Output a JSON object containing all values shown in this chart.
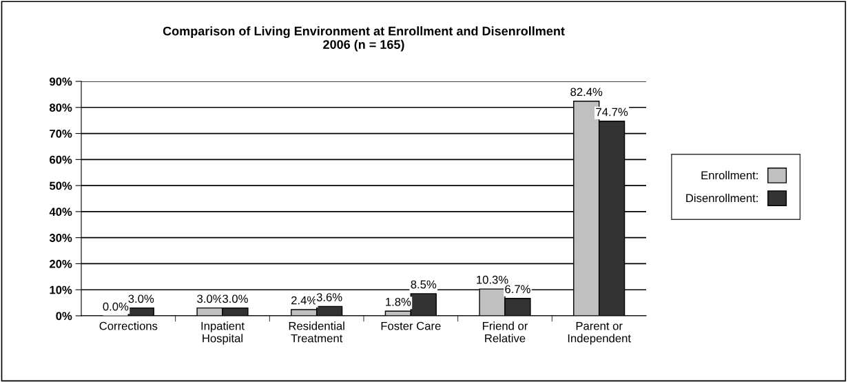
{
  "chart_data": {
    "type": "bar",
    "title": "Comparison of Living Environment at Enrollment and Disenrollment\n2006 (n = 165)",
    "categories": [
      "Corrections",
      "Inpatient\nHospital",
      "Residential\nTreatment",
      "Foster Care",
      "Friend or\nRelative",
      "Parent or\nIndependent"
    ],
    "series": [
      {
        "name": "Enrollment:",
        "color": "#c0c0c0",
        "values": [
          0.0,
          3.0,
          2.4,
          1.8,
          10.3,
          82.4
        ],
        "value_labels": [
          "0.0%",
          "3.0%",
          "2.4%",
          "1.8%",
          "10.3%",
          "82.4%"
        ]
      },
      {
        "name": "Disenrollment:",
        "color": "#333333",
        "values": [
          3.0,
          3.0,
          3.6,
          8.5,
          6.7,
          74.7
        ],
        "value_labels": [
          "3.0%",
          "3.0%",
          "3.6%",
          "8.5%",
          "6.7%",
          "74.7%"
        ]
      }
    ],
    "ylim": [
      0,
      90
    ],
    "yticks": [
      {
        "value": 0,
        "label": "0%"
      },
      {
        "value": 10,
        "label": "10%"
      },
      {
        "value": 20,
        "label": "20%"
      },
      {
        "value": 30,
        "label": "30%"
      },
      {
        "value": 40,
        "label": "40%"
      },
      {
        "value": 50,
        "label": "50%"
      },
      {
        "value": 60,
        "label": "60%"
      },
      {
        "value": 70,
        "label": "70%"
      },
      {
        "value": 80,
        "label": "80%"
      },
      {
        "value": 90,
        "label": "90%"
      }
    ],
    "grid": "y",
    "legend": "right"
  }
}
